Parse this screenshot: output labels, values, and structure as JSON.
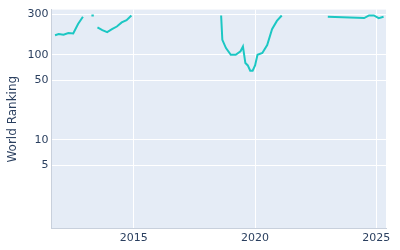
{
  "chart_data": {
    "type": "line",
    "y_label": "World Ranking",
    "x": [
      2011.75,
      2011.9,
      2012.1,
      2012.3,
      2012.5,
      2012.7,
      2012.9,
      2013.1,
      2013.25,
      2013.35,
      2013.42,
      2013.5,
      2013.7,
      2013.9,
      2014.1,
      2014.3,
      2014.5,
      2014.7,
      2014.9,
      2016.5,
      2018.6,
      2018.65,
      2018.8,
      2019.0,
      2019.2,
      2019.4,
      2019.5,
      2019.6,
      2019.7,
      2019.8,
      2019.9,
      2020.0,
      2020.1,
      2020.3,
      2020.5,
      2020.7,
      2020.9,
      2021.1,
      2021.3,
      2023.0,
      2024.5,
      2024.7,
      2024.9,
      2025.1,
      2025.3
    ],
    "values": [
      170,
      175,
      172,
      180,
      178,
      230,
      280,
      null,
      290,
      290,
      null,
      210,
      195,
      185,
      200,
      215,
      240,
      255,
      290,
      null,
      290,
      150,
      120,
      100,
      100,
      110,
      125,
      80,
      75,
      65,
      65,
      75,
      100,
      105,
      130,
      200,
      250,
      290,
      null,
      280,
      270,
      290,
      290,
      270,
      280
    ],
    "color": "#1cc7c3",
    "log": "y",
    "xlim": [
      2011.6,
      2025.4
    ],
    "xticks": [
      2015,
      2020,
      2025
    ],
    "ylim": [
      0.9,
      340
    ],
    "yticks": [
      5,
      10,
      50,
      100,
      300
    ],
    "grid": true
  }
}
